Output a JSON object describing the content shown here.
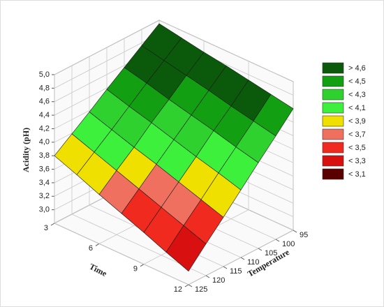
{
  "chart_data": {
    "type": "surface3d",
    "xlabel": "Time",
    "ylabel": "Temperature",
    "zlabel": "Acidity (pH)",
    "x": [
      3,
      4.5,
      6,
      7.5,
      9,
      10.5,
      12
    ],
    "y": [
      95,
      100,
      105,
      110,
      115,
      120,
      125
    ],
    "z": [
      [
        4.95,
        4.76,
        4.57,
        4.38,
        4.18,
        3.99,
        3.8
      ],
      [
        4.89,
        4.69,
        4.49,
        4.28,
        4.07,
        3.87,
        3.67
      ],
      [
        4.83,
        4.62,
        4.4,
        4.19,
        3.96,
        3.75,
        3.53
      ],
      [
        4.78,
        4.55,
        4.32,
        4.09,
        3.86,
        3.63,
        3.4
      ],
      [
        4.72,
        4.47,
        4.24,
        3.99,
        3.75,
        3.51,
        3.27
      ],
      [
        4.66,
        4.4,
        4.15,
        3.9,
        3.64,
        3.39,
        3.13
      ],
      [
        4.6,
        4.33,
        4.07,
        3.8,
        3.53,
        3.27,
        3.0
      ]
    ],
    "xlim": [
      3,
      12
    ],
    "ylim": [
      95,
      125
    ],
    "zlim": [
      2.8,
      5.0
    ],
    "xticks": [
      3,
      6,
      9,
      12
    ],
    "yticks": [
      95,
      100,
      105,
      110,
      115,
      120,
      125
    ],
    "zticks": [
      {
        "value": 3.0,
        "label": "3,0"
      },
      {
        "value": 3.2,
        "label": "3,2"
      },
      {
        "value": 3.4,
        "label": "3,4"
      },
      {
        "value": 3.6,
        "label": "3,6"
      },
      {
        "value": 3.8,
        "label": "3,8"
      },
      {
        "value": 4.0,
        "label": "4,0"
      },
      {
        "value": 4.2,
        "label": "4,2"
      },
      {
        "value": 4.4,
        "label": "4,4"
      },
      {
        "value": 4.6,
        "label": "4,6"
      },
      {
        "value": 4.8,
        "label": "4,8"
      },
      {
        "value": 5.0,
        "label": "5,0"
      }
    ],
    "grid": true,
    "legend": [
      {
        "value": 4.6,
        "label": "> 4,6",
        "color": "#0b5a0b"
      },
      {
        "value": 4.5,
        "label": "< 4,5",
        "color": "#12a012"
      },
      {
        "value": 4.3,
        "label": "< 4,3",
        "color": "#2ed12e"
      },
      {
        "value": 4.1,
        "label": "< 4,1",
        "color": "#3cf03c"
      },
      {
        "value": 3.9,
        "label": "< 3,9",
        "color": "#f0e000"
      },
      {
        "value": 3.7,
        "label": "< 3,7",
        "color": "#f07060"
      },
      {
        "value": 3.5,
        "label": "< 3,5",
        "color": "#f02a1e"
      },
      {
        "value": 3.3,
        "label": "< 3,3",
        "color": "#d81010"
      },
      {
        "value": 3.1,
        "label": "< 3,1",
        "color": "#5a0000"
      }
    ]
  }
}
